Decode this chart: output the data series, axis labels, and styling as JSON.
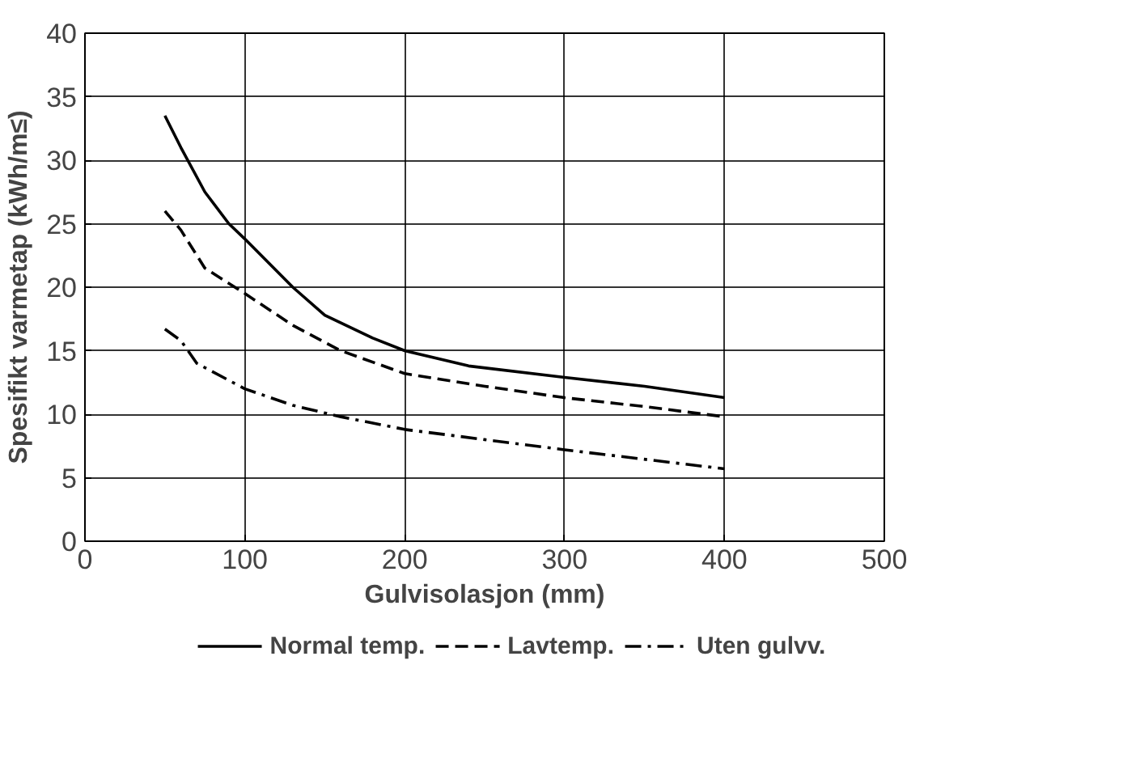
{
  "chart_data": {
    "type": "line",
    "xlabel": "Gulvisolasjon (mm)",
    "ylabel": "Spesifikt varmetap (kWh/m≤)",
    "xlim": [
      0,
      500
    ],
    "xticks": [
      0,
      100,
      200,
      300,
      400,
      500
    ],
    "ylim": [
      0,
      40
    ],
    "yticks": [
      0,
      5,
      10,
      15,
      20,
      25,
      30,
      35,
      40
    ],
    "grid": true,
    "legend": "bottom",
    "series": [
      {
        "name": "Normal temp.",
        "color": "#000000",
        "line_style": "solid",
        "x": [
          50,
          60,
          75,
          90,
          100,
          130,
          150,
          180,
          200,
          240,
          300,
          350,
          400
        ],
        "values": [
          33.5,
          31,
          27.5,
          25,
          23.8,
          20,
          17.8,
          16,
          15,
          13.8,
          12.9,
          12.2,
          11.3
        ]
      },
      {
        "name": "Lavtemp.",
        "color": "#000000",
        "line_style": "dashed",
        "x": [
          50,
          60,
          75,
          100,
          130,
          160,
          200,
          250,
          300,
          350,
          400
        ],
        "values": [
          26,
          24.5,
          21.5,
          19.5,
          17,
          15,
          13.2,
          12.2,
          11.3,
          10.6,
          9.8
        ]
      },
      {
        "name": "Uten gulvv.",
        "color": "#000000",
        "line_style": "dashdot",
        "x": [
          50,
          60,
          70,
          100,
          130,
          160,
          200,
          250,
          300,
          400
        ],
        "values": [
          16.7,
          15.8,
          14,
          12,
          10.7,
          9.8,
          8.8,
          8,
          7.2,
          5.7
        ]
      }
    ]
  }
}
